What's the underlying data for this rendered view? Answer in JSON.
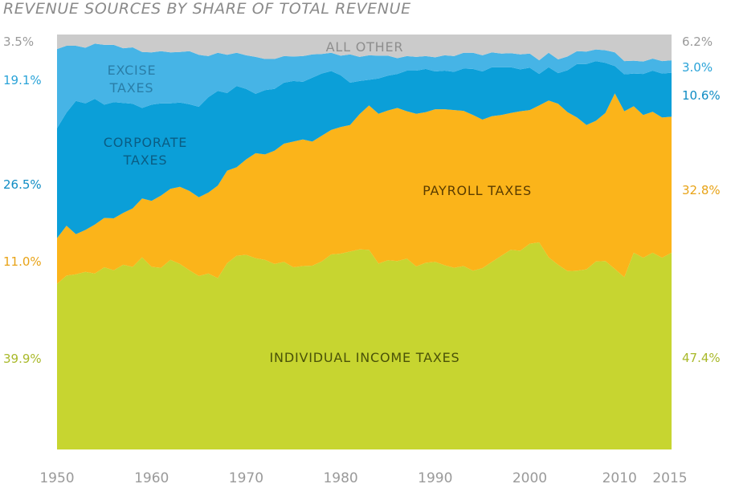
{
  "chart_data": {
    "type": "area",
    "stacked": true,
    "normalized_percent": true,
    "title": "REVENUE SOURCES BY SHARE OF TOTAL REVENUE",
    "xlabel": "",
    "ylabel": "",
    "xlim": [
      1950,
      2015
    ],
    "ylim": [
      0,
      100
    ],
    "grid": false,
    "legend": "none (labels placed inside areas)",
    "x": [
      1950,
      1951,
      1952,
      1953,
      1954,
      1955,
      1956,
      1957,
      1958,
      1959,
      1960,
      1961,
      1962,
      1963,
      1964,
      1965,
      1966,
      1967,
      1968,
      1969,
      1970,
      1971,
      1972,
      1973,
      1974,
      1975,
      1976,
      1977,
      1978,
      1979,
      1980,
      1981,
      1982,
      1983,
      1984,
      1985,
      1986,
      1987,
      1988,
      1989,
      1990,
      1991,
      1992,
      1993,
      1994,
      1995,
      1996,
      1997,
      1998,
      1999,
      2000,
      2001,
      2002,
      2003,
      2004,
      2005,
      2006,
      2007,
      2008,
      2009,
      2010,
      2011,
      2012,
      2013,
      2014,
      2015
    ],
    "series": [
      {
        "name": "INDIVIDUAL INCOME TAXES",
        "color": "#c7d530",
        "values": [
          39.9,
          41.9,
          42.2,
          42.8,
          42.4,
          43.9,
          43.2,
          44.5,
          44.0,
          46.3,
          44.0,
          43.8,
          45.7,
          44.7,
          43.2,
          41.8,
          42.4,
          41.3,
          44.9,
          46.7,
          46.9,
          46.1,
          45.7,
          44.7,
          45.2,
          43.9,
          44.2,
          44.3,
          45.3,
          47.0,
          47.2,
          47.7,
          48.2,
          48.1,
          44.8,
          45.6,
          45.4,
          46.0,
          44.1,
          45.0,
          45.2,
          44.4,
          43.8,
          44.2,
          43.1,
          43.7,
          45.2,
          46.7,
          48.1,
          47.9,
          49.6,
          49.9,
          46.3,
          44.5,
          43.0,
          43.1,
          43.4,
          45.3,
          45.4,
          43.5,
          41.5,
          47.4,
          46.2,
          47.4,
          46.2,
          47.4
        ]
      },
      {
        "name": "PAYROLL TAXES",
        "color": "#fbb41a",
        "values": [
          11.0,
          12.0,
          9.7,
          10.1,
          11.8,
          11.9,
          12.5,
          12.5,
          14.1,
          14.2,
          15.9,
          17.4,
          17.1,
          18.6,
          19.1,
          19.0,
          19.5,
          22.3,
          22.3,
          21.3,
          23.0,
          25.3,
          25.4,
          27.3,
          28.5,
          30.3,
          30.5,
          29.9,
          30.3,
          30.0,
          30.5,
          30.5,
          32.6,
          34.8,
          36.1,
          36.1,
          36.9,
          35.5,
          36.8,
          36.3,
          36.8,
          37.6,
          38.0,
          37.4,
          37.5,
          35.8,
          35.1,
          33.9,
          33.0,
          33.6,
          32.2,
          33.0,
          37.8,
          38.8,
          38.3,
          36.9,
          34.8,
          33.9,
          35.7,
          42.3,
          40.0,
          35.3,
          34.4,
          34.0,
          33.8,
          32.8
        ]
      },
      {
        "name": "CORPORATE TAXES",
        "color": "#0b9fd8",
        "values": [
          26.5,
          27.3,
          32.1,
          30.5,
          30.3,
          27.3,
          28.0,
          26.5,
          25.2,
          21.8,
          23.2,
          22.2,
          20.6,
          20.3,
          20.9,
          21.8,
          23.0,
          22.8,
          18.7,
          19.6,
          17.0,
          14.3,
          15.5,
          14.9,
          14.7,
          14.6,
          13.9,
          15.4,
          15.0,
          14.2,
          12.5,
          10.2,
          8.0,
          6.2,
          8.5,
          8.4,
          8.2,
          9.8,
          10.4,
          10.4,
          9.1,
          9.3,
          9.2,
          10.2,
          11.1,
          11.6,
          11.8,
          11.5,
          11.0,
          10.1,
          10.2,
          7.6,
          8.0,
          7.4,
          10.1,
          12.9,
          14.7,
          14.4,
          12.1,
          6.6,
          8.9,
          7.9,
          9.9,
          9.9,
          10.6,
          10.6
        ]
      },
      {
        "name": "EXCISE TAXES",
        "color": "#46b4e6",
        "values": [
          19.1,
          16.1,
          13.3,
          13.4,
          13.3,
          14.4,
          13.8,
          13.2,
          13.6,
          13.5,
          12.6,
          12.6,
          12.3,
          12.2,
          12.8,
          12.5,
          9.9,
          9.2,
          9.2,
          8.0,
          8.1,
          8.9,
          7.5,
          7.2,
          6.4,
          5.9,
          6.2,
          5.6,
          4.7,
          4.4,
          4.7,
          6.8,
          5.8,
          5.9,
          5.5,
          4.8,
          3.8,
          3.5,
          3.3,
          3.1,
          3.4,
          3.7,
          3.8,
          3.8,
          3.9,
          3.9,
          3.6,
          3.3,
          3.4,
          3.6,
          3.4,
          3.3,
          3.5,
          3.3,
          3.3,
          3.1,
          3.0,
          2.8,
          3.0,
          3.3,
          3.2,
          3.1,
          3.0,
          2.9,
          3.0,
          3.0
        ]
      },
      {
        "name": "ALL OTHER",
        "color": "#cbcbcb",
        "values": [
          3.5,
          2.7,
          2.7,
          3.2,
          2.2,
          2.5,
          2.5,
          3.3,
          3.1,
          4.2,
          4.3,
          4.0,
          4.3,
          4.2,
          4.0,
          4.9,
          5.2,
          4.4,
          4.9,
          4.4,
          5.0,
          5.4,
          5.9,
          5.9,
          5.2,
          5.3,
          5.2,
          4.8,
          4.7,
          4.4,
          5.1,
          4.8,
          5.4,
          5.0,
          5.1,
          5.1,
          5.7,
          5.2,
          5.4,
          5.2,
          5.5,
          5.0,
          5.2,
          4.4,
          4.4,
          5.0,
          4.3,
          4.6,
          4.5,
          4.8,
          4.6,
          6.2,
          4.4,
          6.0,
          5.3,
          4.0,
          4.1,
          3.6,
          3.8,
          4.3,
          6.4,
          6.3,
          6.5,
          5.8,
          6.4,
          6.2
        ]
      }
    ],
    "x_ticks": [
      "1950",
      "1960",
      "1970",
      "1980",
      "1990",
      "2000",
      "2010",
      "2015"
    ],
    "start_labels": [
      "3.5%",
      "19.1%",
      "26.5%",
      "11.0%",
      "39.9%"
    ],
    "end_labels": [
      "6.2%",
      "3.0%",
      "10.6%",
      "32.8%",
      "47.4%"
    ],
    "area_labels": {
      "all_other": "ALL OTHER",
      "excise_1": "EXCISE",
      "excise_2": "TAXES",
      "corporate_1": "CORPORATE",
      "corporate_2": "TAXES",
      "payroll": "PAYROLL TAXES",
      "individual": "INDIVIDUAL INCOME TAXES"
    },
    "label_colors": {
      "all_other": "#8e8e8e",
      "excise": "#2a7ea8",
      "corporate": "#0a5d84",
      "payroll": "#5a3c00",
      "individual": "#4a5208"
    },
    "axis_color": "#9a9a9a"
  }
}
